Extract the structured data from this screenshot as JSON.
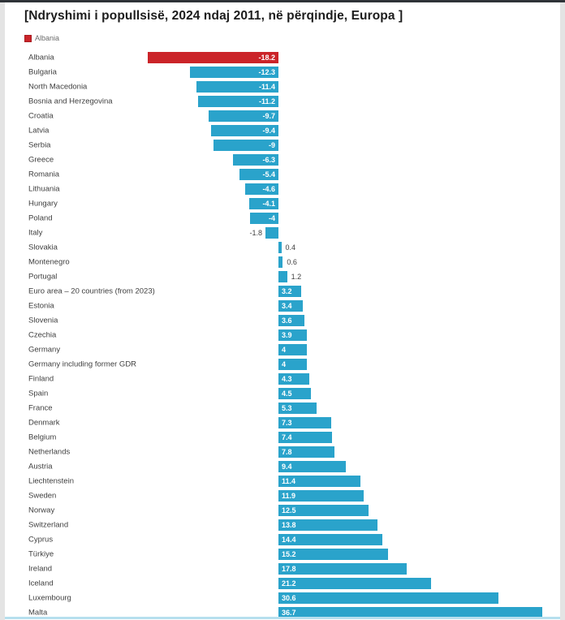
{
  "chart_data": {
    "type": "bar",
    "orientation": "horizontal",
    "title": "[Ndryshimi i popullsisë, 2024 ndaj 2011, në përqindje, Europa ]",
    "legend": {
      "label": "Albania",
      "position": "top-left"
    },
    "highlight_category": "Albania",
    "categories": [
      "Albania",
      "Bulgaria",
      "North Macedonia",
      "Bosnia and Herzegovina",
      "Croatia",
      "Latvia",
      "Serbia",
      "Greece",
      "Romania",
      "Lithuania",
      "Hungary",
      "Poland",
      "Italy",
      "Slovakia",
      "Montenegro",
      "Portugal",
      "Euro area – 20 countries (from 2023)",
      "Estonia",
      "Slovenia",
      "Czechia",
      "Germany",
      "Germany including former GDR",
      "Finland",
      "Spain",
      "France",
      "Denmark",
      "Belgium",
      "Netherlands",
      "Austria",
      "Liechtenstein",
      "Sweden",
      "Norway",
      "Switzerland",
      "Cyprus",
      "Türkiye",
      "Ireland",
      "Iceland",
      "Luxembourg",
      "Malta"
    ],
    "values": [
      -18.2,
      -12.3,
      -11.4,
      -11.2,
      -9.7,
      -9.4,
      -9,
      -6.3,
      -5.4,
      -4.6,
      -4.1,
      -4,
      -1.8,
      0.4,
      0.6,
      1.2,
      3.2,
      3.4,
      3.6,
      3.9,
      4,
      4,
      4.3,
      4.5,
      5.3,
      7.3,
      7.4,
      7.8,
      9.4,
      11.4,
      11.9,
      12.5,
      13.8,
      14.4,
      15.2,
      17.8,
      21.2,
      30.6,
      36.7
    ],
    "colors": {
      "highlight": "#cb2429",
      "default": "#2aa3cb",
      "value_label_inside": "#ffffff",
      "value_label_outside": "#3f3f3f"
    },
    "xlim": [
      -20,
      38
    ],
    "grid": false,
    "xlabel": "",
    "ylabel": ""
  }
}
